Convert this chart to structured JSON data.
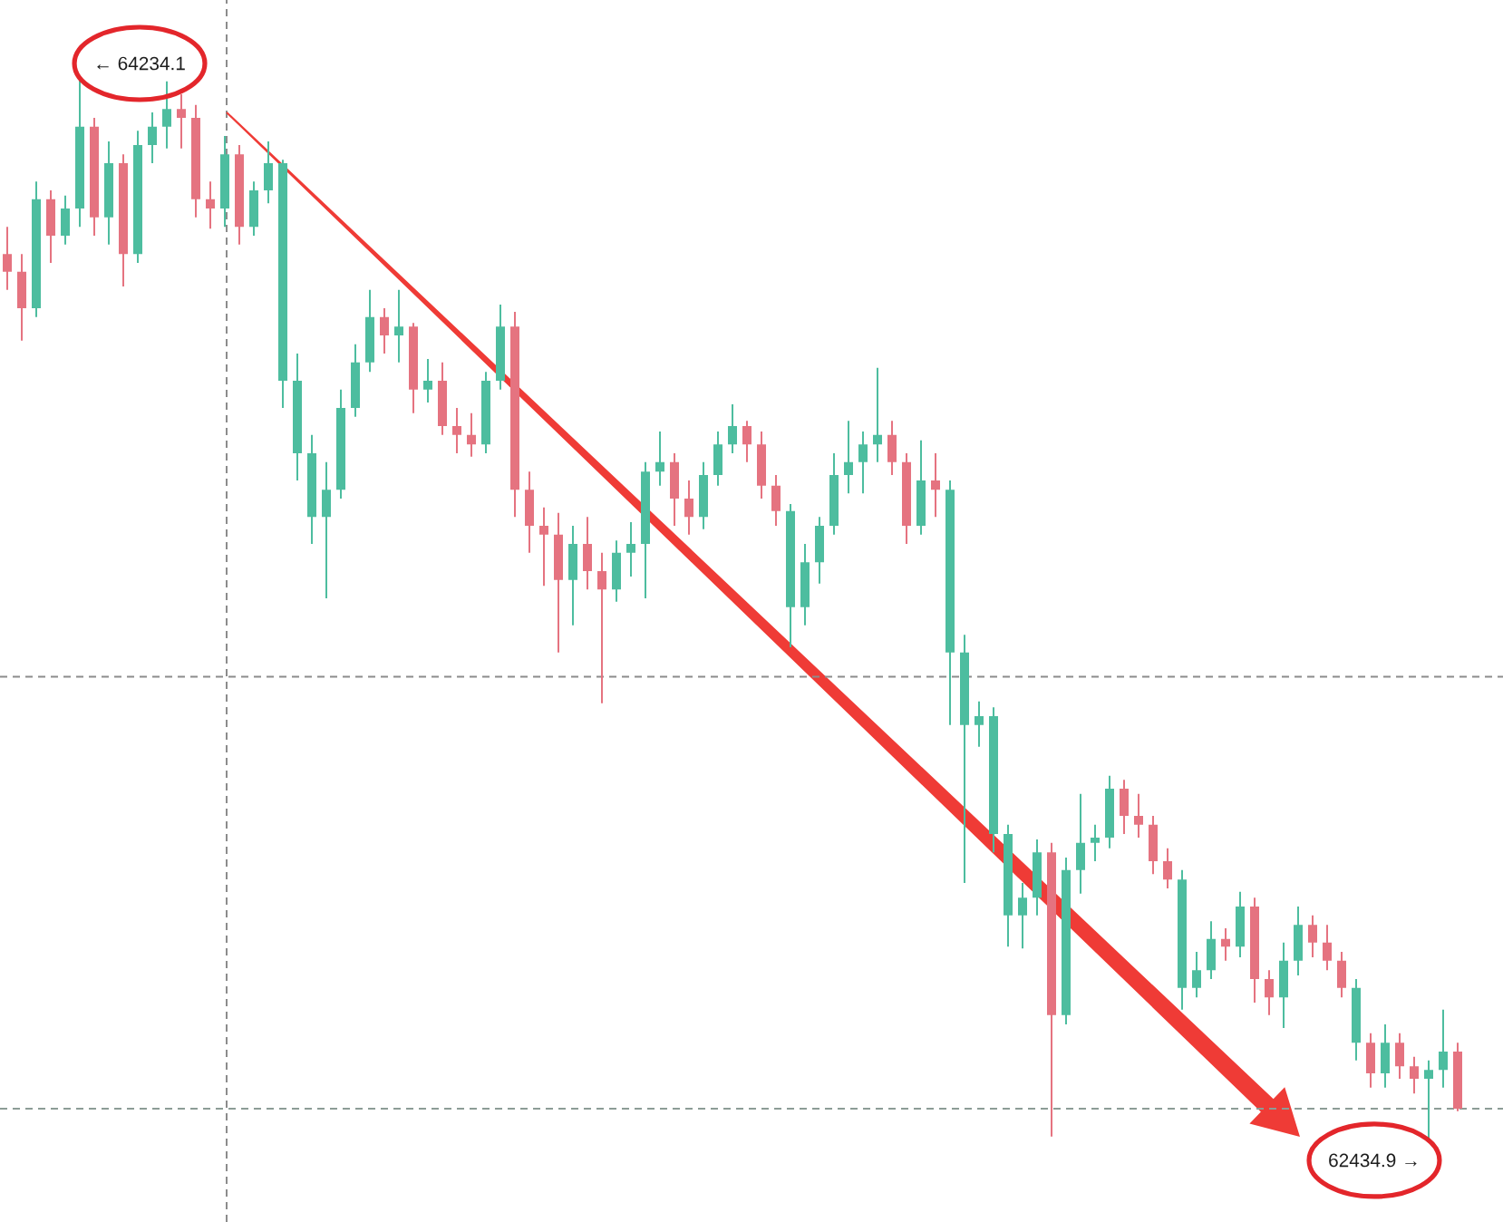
{
  "chart_data": {
    "type": "candlestick",
    "categories": [
      null,
      null,
      null,
      null,
      null,
      null,
      null,
      null,
      null,
      null,
      null,
      null,
      null,
      null,
      null,
      null,
      null,
      null,
      null,
      null,
      null,
      null,
      null,
      null,
      null,
      null,
      null,
      null,
      null,
      null,
      null,
      null,
      null,
      null,
      null,
      null,
      null,
      null,
      null,
      null,
      null,
      null,
      null,
      null,
      null,
      null,
      null,
      null,
      null,
      null,
      null,
      null,
      null,
      null,
      null,
      null,
      null,
      null,
      null,
      null,
      null,
      null,
      null,
      null,
      null,
      null,
      null,
      null,
      null,
      null,
      null,
      null,
      null,
      null,
      null,
      null,
      null,
      null,
      null,
      null,
      null,
      null,
      null,
      null,
      null,
      null,
      null,
      null,
      null,
      null,
      null,
      null,
      null,
      null,
      null,
      null,
      null,
      null,
      null,
      null,
      null
    ],
    "ohlc": [
      [
        63937,
        63983,
        63876,
        63907
      ],
      [
        63907,
        63937,
        63790,
        63845
      ],
      [
        63845,
        64060,
        63830,
        64030
      ],
      [
        64030,
        64045,
        63922,
        63968
      ],
      [
        63968,
        64036,
        63953,
        64014
      ],
      [
        64014,
        64234.1,
        63983,
        64153
      ],
      [
        64153,
        64168,
        63968,
        63999
      ],
      [
        63999,
        64128,
        63953,
        64091
      ],
      [
        64091,
        64106,
        63882,
        63937
      ],
      [
        63937,
        64146,
        63922,
        64122
      ],
      [
        64122,
        64177,
        64091,
        64153
      ],
      [
        64153,
        64230,
        64116,
        64183
      ],
      [
        64183,
        64208,
        64116,
        64168
      ],
      [
        64168,
        64190,
        63999,
        64030
      ],
      [
        64030,
        64060,
        63980,
        64014
      ],
      [
        64014,
        64137,
        63983,
        64106
      ],
      [
        64106,
        64122,
        63953,
        63983
      ],
      [
        63983,
        64060,
        63968,
        64045
      ],
      [
        64045,
        64128,
        64023,
        64091
      ],
      [
        64091,
        64097,
        63676,
        63722
      ],
      [
        63722,
        63768,
        63553,
        63599
      ],
      [
        63599,
        63630,
        63445,
        63491
      ],
      [
        63491,
        63584,
        63353,
        63537
      ],
      [
        63537,
        63707,
        63522,
        63676
      ],
      [
        63676,
        63784,
        63661,
        63753
      ],
      [
        63753,
        63876,
        63737,
        63830
      ],
      [
        63830,
        63845,
        63768,
        63799
      ],
      [
        63799,
        63876,
        63753,
        63814
      ],
      [
        63814,
        63820,
        63667,
        63707
      ],
      [
        63707,
        63759,
        63685,
        63722
      ],
      [
        63722,
        63753,
        63630,
        63645
      ],
      [
        63645,
        63676,
        63599,
        63630
      ],
      [
        63630,
        63667,
        63593,
        63614
      ],
      [
        63614,
        63737,
        63599,
        63722
      ],
      [
        63722,
        63851,
        63707,
        63814
      ],
      [
        63814,
        63839,
        63491,
        63537
      ],
      [
        63537,
        63568,
        63430,
        63476
      ],
      [
        63476,
        63507,
        63374,
        63461
      ],
      [
        63461,
        63498,
        63261,
        63384
      ],
      [
        63384,
        63476,
        63307,
        63445
      ],
      [
        63445,
        63491,
        63368,
        63399
      ],
      [
        63399,
        63430,
        63175,
        63368
      ],
      [
        63368,
        63451,
        63347,
        63430
      ],
      [
        63430,
        63482,
        63390,
        63445
      ],
      [
        63445,
        63584,
        63353,
        63568
      ],
      [
        63568,
        63636,
        63544,
        63584
      ],
      [
        63584,
        63599,
        63476,
        63522
      ],
      [
        63522,
        63553,
        63461,
        63491
      ],
      [
        63491,
        63584,
        63470,
        63562
      ],
      [
        63562,
        63636,
        63544,
        63614
      ],
      [
        63614,
        63682,
        63599,
        63645
      ],
      [
        63645,
        63654,
        63584,
        63614
      ],
      [
        63614,
        63636,
        63522,
        63544
      ],
      [
        63544,
        63562,
        63476,
        63501
      ],
      [
        63501,
        63513,
        63270,
        63338
      ],
      [
        63338,
        63445,
        63307,
        63414
      ],
      [
        63414,
        63491,
        63378,
        63476
      ],
      [
        63476,
        63599,
        63461,
        63562
      ],
      [
        63562,
        63654,
        63531,
        63584
      ],
      [
        63584,
        63636,
        63531,
        63614
      ],
      [
        63614,
        63744,
        63584,
        63630
      ],
      [
        63630,
        63654,
        63562,
        63584
      ],
      [
        63584,
        63599,
        63445,
        63476
      ],
      [
        63476,
        63621,
        63461,
        63553
      ],
      [
        63553,
        63599,
        63491,
        63537
      ],
      [
        63537,
        63553,
        63138,
        63261
      ],
      [
        63261,
        63291,
        62870,
        63138
      ],
      [
        63138,
        63178,
        63101,
        63153
      ],
      [
        63153,
        63168,
        62922,
        62953
      ],
      [
        62953,
        62969,
        62762,
        62815
      ],
      [
        62815,
        62870,
        62759,
        62845
      ],
      [
        62845,
        62944,
        62815,
        62922
      ],
      [
        62922,
        62938,
        62440,
        62646
      ],
      [
        62646,
        62913,
        62630,
        62892
      ],
      [
        62892,
        63021,
        62852,
        62938
      ],
      [
        62938,
        62969,
        62907,
        62947
      ],
      [
        62947,
        63052,
        62929,
        63030
      ],
      [
        63030,
        63045,
        62953,
        62984
      ],
      [
        62984,
        63021,
        62947,
        62969
      ],
      [
        62969,
        62984,
        62885,
        62907
      ],
      [
        62907,
        62929,
        62861,
        62876
      ],
      [
        62876,
        62892,
        62655,
        62692
      ],
      [
        62692,
        62753,
        62676,
        62722
      ],
      [
        62722,
        62805,
        62707,
        62775
      ],
      [
        62775,
        62793,
        62738,
        62762
      ],
      [
        62762,
        62855,
        62744,
        62830
      ],
      [
        62830,
        62845,
        62667,
        62707
      ],
      [
        62707,
        62722,
        62646,
        62676
      ],
      [
        62676,
        62769,
        62624,
        62738
      ],
      [
        62738,
        62830,
        62713,
        62799
      ],
      [
        62799,
        62815,
        62744,
        62769
      ],
      [
        62769,
        62799,
        62722,
        62738
      ],
      [
        62738,
        62753,
        62676,
        62692
      ],
      [
        62692,
        62707,
        62569,
        62599
      ],
      [
        62599,
        62615,
        62523,
        62547
      ],
      [
        62547,
        62630,
        62523,
        62599
      ],
      [
        62599,
        62615,
        62538,
        62559
      ],
      [
        62559,
        62575,
        62513,
        62538
      ],
      [
        62538,
        62569,
        62434.9,
        62553
      ],
      [
        62553,
        62655,
        62523,
        62584
      ],
      [
        62584,
        62599,
        62483,
        62487
      ]
    ],
    "colors": [
      "#e57380",
      "#e57380",
      "#4dbd9f",
      "#e57380",
      "#4dbd9f",
      "#4dbd9f",
      "#e57380",
      "#4dbd9f",
      "#e57380",
      "#4dbd9f",
      "#4dbd9f",
      "#4dbd9f",
      "#e57380",
      "#e57380",
      "#e57380",
      "#4dbd9f",
      "#e57380",
      "#4dbd9f",
      "#4dbd9f",
      "#4dbd9f",
      "#4dbd9f",
      "#4dbd9f",
      "#4dbd9f",
      "#4dbd9f",
      "#4dbd9f",
      "#4dbd9f",
      "#e57380",
      "#4dbd9f",
      "#e57380",
      "#4dbd9f",
      "#e57380",
      "#e57380",
      "#e57380",
      "#4dbd9f",
      "#4dbd9f",
      "#e57380",
      "#e57380",
      "#e57380",
      "#e57380",
      "#4dbd9f",
      "#e57380",
      "#e57380",
      "#4dbd9f",
      "#4dbd9f",
      "#4dbd9f",
      "#4dbd9f",
      "#e57380",
      "#e57380",
      "#4dbd9f",
      "#4dbd9f",
      "#4dbd9f",
      "#e57380",
      "#e57380",
      "#e57380",
      "#4dbd9f",
      "#4dbd9f",
      "#4dbd9f",
      "#4dbd9f",
      "#4dbd9f",
      "#4dbd9f",
      "#4dbd9f",
      "#e57380",
      "#e57380",
      "#4dbd9f",
      "#e57380",
      "#4dbd9f",
      "#4dbd9f",
      "#4dbd9f",
      "#4dbd9f",
      "#4dbd9f",
      "#4dbd9f",
      "#4dbd9f",
      "#e57380",
      "#4dbd9f",
      "#4dbd9f",
      "#4dbd9f",
      "#4dbd9f",
      "#e57380",
      "#e57380",
      "#e57380",
      "#e57380",
      "#4dbd9f",
      "#4dbd9f",
      "#4dbd9f",
      "#e57380",
      "#4dbd9f",
      "#e57380",
      "#e57380",
      "#4dbd9f",
      "#4dbd9f",
      "#e57380",
      "#e57380",
      "#e57380",
      "#4dbd9f",
      "#e57380",
      "#4dbd9f",
      "#e57380",
      "#e57380",
      "#4dbd9f",
      "#4dbd9f",
      "#e57380"
    ],
    "annotations": [
      "← 64234.1",
      "62434.9 →"
    ],
    "ref_lines": [
      {
        "axis": "y",
        "value": 63220,
        "color": "#8c8c8c",
        "line_style": "dashed"
      },
      {
        "axis": "y",
        "value": 62487,
        "color": "#8c9c96",
        "line_style": "dashed"
      }
    ]
  }
}
